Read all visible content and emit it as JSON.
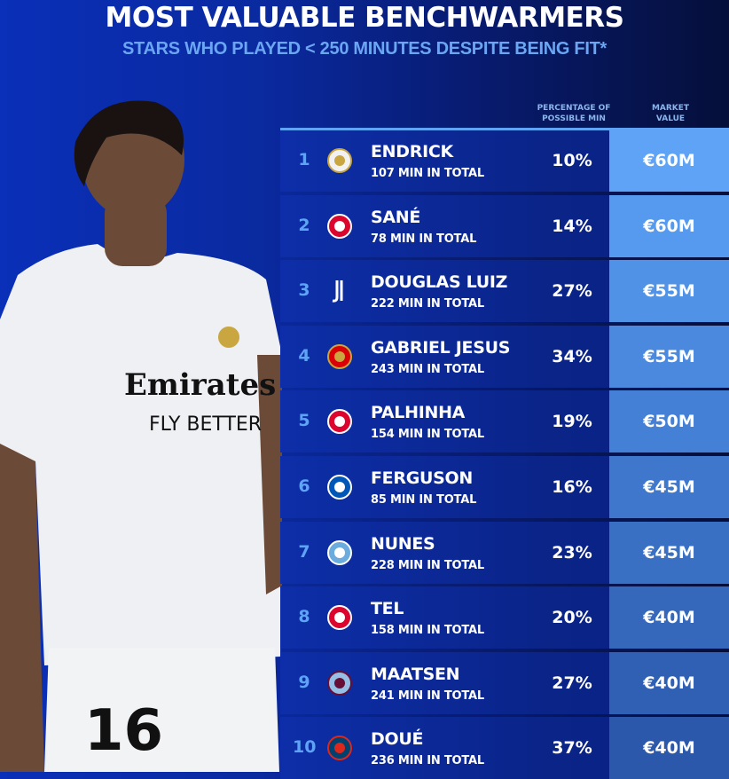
{
  "header": {
    "title": "MOST VALUABLE BENCHWARMERS",
    "subtitle": "STARS WHO PLAYED < 250 MINUTES DESPITE BEING FIT*"
  },
  "columns": {
    "percentage": "PERCENTAGE OF POSSIBLE MIN",
    "market_value": "MARKET VALUE"
  },
  "photo": {
    "shirt_sponsor": "Emirates FLY BETTER",
    "shirt_number": "16"
  },
  "colors": {
    "accent": "#5ea3f5",
    "row_bg": "#0a2488",
    "background": "#0a2aa0"
  },
  "rows": [
    {
      "rank": "1",
      "club_icon": "real-madrid-crest",
      "name": "ENDRICK",
      "minutes": "107 MIN IN TOTAL",
      "percentage": "10%",
      "market_value": "€60M"
    },
    {
      "rank": "2",
      "club_icon": "bayern-crest",
      "name": "SANÉ",
      "minutes": "78 MIN IN TOTAL",
      "percentage": "14%",
      "market_value": "€60M"
    },
    {
      "rank": "3",
      "club_icon": "juventus-crest",
      "name": "DOUGLAS LUIZ",
      "minutes": "222 MIN IN TOTAL",
      "percentage": "27%",
      "market_value": "€55M"
    },
    {
      "rank": "4",
      "club_icon": "arsenal-crest",
      "name": "GABRIEL JESUS",
      "minutes": "243 MIN IN TOTAL",
      "percentage": "34%",
      "market_value": "€55M"
    },
    {
      "rank": "5",
      "club_icon": "bayern-crest",
      "name": "PALHINHA",
      "minutes": "154 MIN IN TOTAL",
      "percentage": "19%",
      "market_value": "€50M"
    },
    {
      "rank": "6",
      "club_icon": "brighton-crest",
      "name": "FERGUSON",
      "minutes": "85 MIN IN TOTAL",
      "percentage": "16%",
      "market_value": "€45M"
    },
    {
      "rank": "7",
      "club_icon": "man-city-crest",
      "name": "NUNES",
      "minutes": "228 MIN IN TOTAL",
      "percentage": "23%",
      "market_value": "€45M"
    },
    {
      "rank": "8",
      "club_icon": "bayern-crest",
      "name": "TEL",
      "minutes": "158 MIN IN TOTAL",
      "percentage": "20%",
      "market_value": "€40M"
    },
    {
      "rank": "9",
      "club_icon": "aston-villa-crest",
      "name": "MAATSEN",
      "minutes": "241 MIN IN TOTAL",
      "percentage": "27%",
      "market_value": "€40M"
    },
    {
      "rank": "10",
      "club_icon": "psg-crest",
      "name": "DOUÉ",
      "minutes": "236 MIN IN TOTAL",
      "percentage": "37%",
      "market_value": "€40M"
    }
  ]
}
